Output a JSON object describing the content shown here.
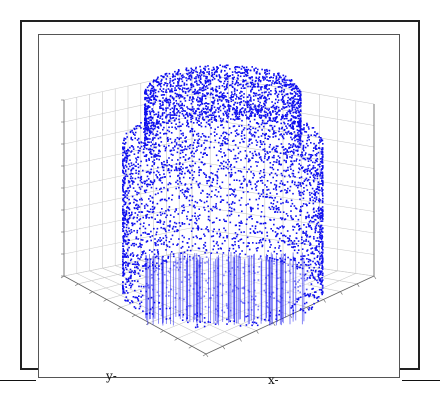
{
  "chart_data": {
    "type": "scatter3d",
    "title": "",
    "xlabel": "x-",
    "ylabel": "y-",
    "zlabel": "",
    "grid": true,
    "series": [
      {
        "color": "#1010ee",
        "shape": "stacked-cylinder-point-cloud",
        "sections": [
          {
            "part": "lower-cylinder",
            "radius": 1.0,
            "z_range": [
              0,
              6
            ]
          },
          {
            "part": "upper-cylinder",
            "radius": 0.78,
            "z_range": [
              6,
              8
            ]
          }
        ]
      }
    ],
    "colors": {
      "points": "#1010ee",
      "grid": "#c8c8c8",
      "axes": "#666666"
    }
  }
}
